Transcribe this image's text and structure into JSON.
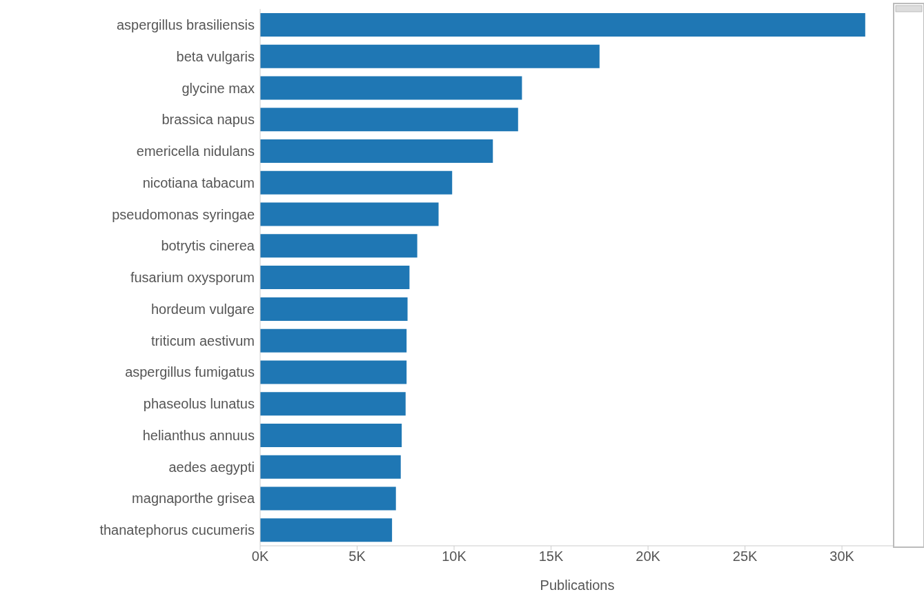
{
  "chart_data": {
    "type": "bar",
    "orientation": "horizontal",
    "xlabel": "Publications",
    "categories": [
      "aspergillus brasiliensis",
      "beta vulgaris",
      "glycine max",
      "brassica napus",
      "emericella nidulans",
      "nicotiana tabacum",
      "pseudomonas syringae",
      "botrytis cinerea",
      "fusarium oxysporum",
      "hordeum vulgare",
      "triticum aestivum",
      "aspergillus fumigatus",
      "phaseolus lunatus",
      "helianthus annuus",
      "aedes aegypti",
      "magnaporthe grisea",
      "thanatephorus cucumeris"
    ],
    "values": [
      31200,
      17500,
      13500,
      13300,
      12000,
      9900,
      9200,
      8100,
      7700,
      7600,
      7550,
      7550,
      7500,
      7300,
      7250,
      7000,
      6800
    ],
    "color": "#1f77b4",
    "xlim": [
      0,
      32700
    ],
    "xticks": [
      {
        "value": 0,
        "label": "0K"
      },
      {
        "value": 5000,
        "label": "5K"
      },
      {
        "value": 10000,
        "label": "10K"
      },
      {
        "value": 15000,
        "label": "15K"
      },
      {
        "value": 20000,
        "label": "20K"
      },
      {
        "value": 25000,
        "label": "25K"
      },
      {
        "value": 30000,
        "label": "30K"
      }
    ],
    "grid": false,
    "legend": false
  }
}
